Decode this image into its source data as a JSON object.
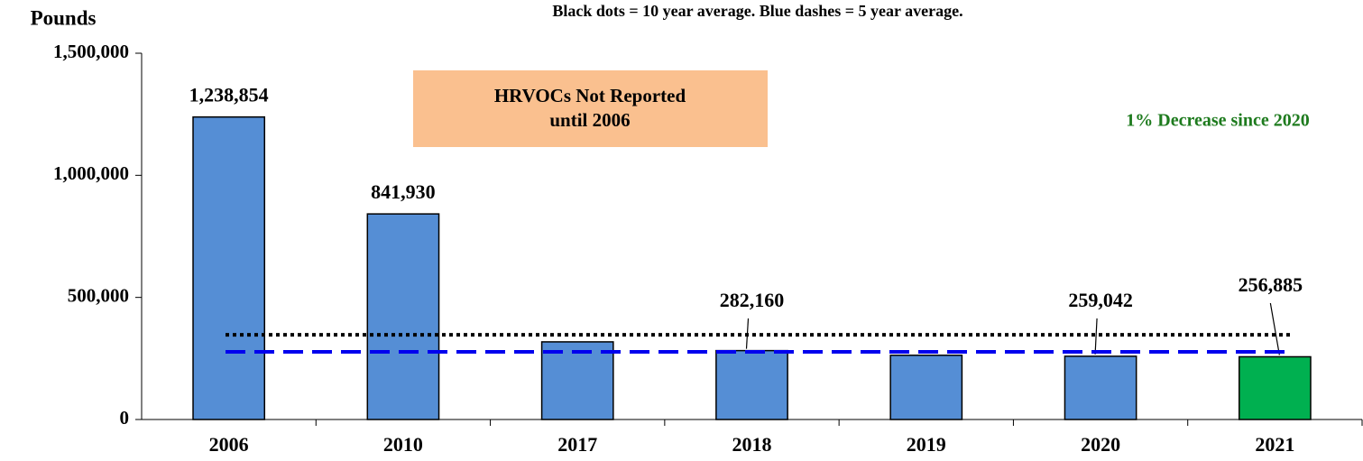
{
  "chart_data": {
    "type": "bar",
    "subtitle": "Black dots = 10 year average.  Blue dashes = 5 year average.",
    "y_label": "Pounds",
    "categories": [
      "2006",
      "2010",
      "2017",
      "2018",
      "2019",
      "2020",
      "2021"
    ],
    "values": [
      1238854,
      841930,
      318000,
      282160,
      263000,
      259042,
      256885
    ],
    "value_labels": [
      "1,238,854",
      "841,930",
      null,
      "282,160",
      null,
      "259,042",
      "256,885"
    ],
    "colors": [
      "#558ed5",
      "#558ed5",
      "#558ed5",
      "#558ed5",
      "#558ed5",
      "#558ed5",
      "#00b050"
    ],
    "ylim": [
      0,
      1500000
    ],
    "yticks": [
      {
        "value": 0,
        "label": "0"
      },
      {
        "value": 500000,
        "label": "500,000"
      },
      {
        "value": 1000000,
        "label": "1,000,000"
      },
      {
        "value": 1500000,
        "label": "1,500,000"
      }
    ],
    "reference_lines": [
      {
        "value": 347000,
        "color": "#000000",
        "style": "dotted"
      },
      {
        "value": 277000,
        "color": "#0000ee",
        "style": "dashed"
      }
    ],
    "annotations": [
      {
        "lines": [
          "HRVOCs Not Reported",
          "until 2006"
        ],
        "color": "#000000",
        "background": "#fac08f"
      },
      {
        "lines": [
          "1% Decrease since 2020"
        ],
        "color": "#1e7b1e"
      }
    ]
  }
}
